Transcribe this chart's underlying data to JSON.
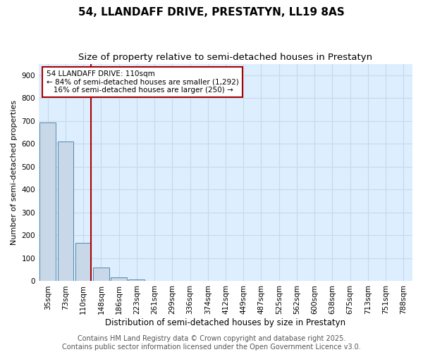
{
  "title": "54, LLANDAFF DRIVE, PRESTATYN, LL19 8AS",
  "subtitle": "Size of property relative to semi-detached houses in Prestatyn",
  "xlabel": "Distribution of semi-detached houses by size in Prestatyn",
  "ylabel": "Number of semi-detached properties",
  "bar_labels": [
    "35sqm",
    "73sqm",
    "110sqm",
    "148sqm",
    "186sqm",
    "223sqm",
    "261sqm",
    "299sqm",
    "336sqm",
    "374sqm",
    "412sqm",
    "449sqm",
    "487sqm",
    "525sqm",
    "562sqm",
    "600sqm",
    "638sqm",
    "675sqm",
    "713sqm",
    "751sqm",
    "788sqm"
  ],
  "bar_values": [
    693,
    611,
    169,
    61,
    17,
    8,
    0,
    0,
    0,
    0,
    0,
    0,
    0,
    0,
    0,
    0,
    0,
    0,
    0,
    0,
    0
  ],
  "bar_color": "#c8d8e8",
  "bar_edge_color": "#5588aa",
  "highlight_line_index": 2,
  "highlight_line_color": "#aa0000",
  "annotation_text": "54 LLANDAFF DRIVE: 110sqm\n← 84% of semi-detached houses are smaller (1,292)\n   16% of semi-detached houses are larger (250) →",
  "annotation_box_color": "white",
  "annotation_box_edge": "#aa0000",
  "ylim": [
    0,
    950
  ],
  "yticks": [
    0,
    100,
    200,
    300,
    400,
    500,
    600,
    700,
    800,
    900
  ],
  "grid_color": "#c5daea",
  "bg_color": "#ddeeff",
  "footer_text": "Contains HM Land Registry data © Crown copyright and database right 2025.\nContains public sector information licensed under the Open Government Licence v3.0.",
  "title_fontsize": 11,
  "subtitle_fontsize": 9.5,
  "footer_fontsize": 7,
  "ylabel_fontsize": 8,
  "xlabel_fontsize": 8.5,
  "tick_fontsize": 7.5,
  "annotation_fontsize": 7.5
}
